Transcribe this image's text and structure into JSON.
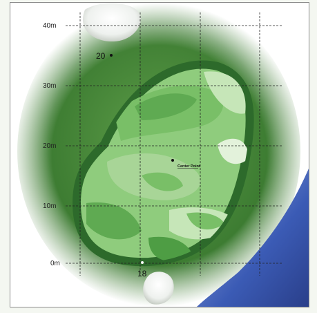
{
  "map": {
    "distance_unit": "m",
    "ticks": [
      "0m",
      "10m",
      "20m",
      "30m",
      "40m"
    ],
    "center_point_label": "Center Point",
    "pins": [
      {
        "number": "20"
      },
      {
        "number": "18"
      }
    ],
    "colors": {
      "rough": "#3d7c32",
      "green_border": "#2d6a2b",
      "green_light": "#a8d597",
      "green_mid": "#79bf67",
      "green_dark": "#4e9d44",
      "water": "#3b5bb5",
      "grid_line": "#222222"
    }
  }
}
